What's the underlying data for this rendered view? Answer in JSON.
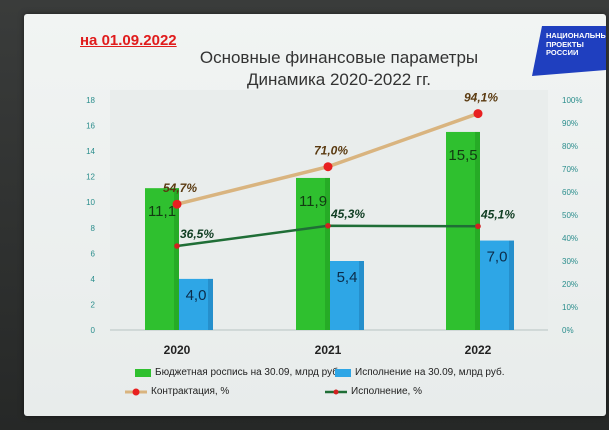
{
  "header": {
    "date_label": "на 01.09.2022",
    "title_line1": "Основные финансовые параметры",
    "title_line2": "Динамика 2020-2022 гг."
  },
  "logo": {
    "line1": "НАЦИОНАЛЬНЫЕ",
    "line2": "ПРОЕКТЫ",
    "line3": "РОССИИ",
    "color": "#1f3fbf"
  },
  "colors": {
    "budget_bar": "#2fc02f",
    "execution_bar": "#2ea6e6",
    "contract_line": "#d9b47f",
    "contract_marker": "#e82020",
    "execution_line": "#1f6e36",
    "execution_marker": "#d22020",
    "axis_text": "#2a8d8c"
  },
  "chart_data": {
    "type": "bar",
    "categories": [
      "2020",
      "2021",
      "2022"
    ],
    "series": [
      {
        "name": "Бюджетная роспись на 30.09, млрд руб.",
        "kind": "bar",
        "axis": "left",
        "values": [
          11.1,
          11.9,
          15.5
        ],
        "labels": [
          "11,1",
          "11,9",
          "15,5"
        ]
      },
      {
        "name": "Исполнение на 30.09, млрд руб.",
        "kind": "bar",
        "axis": "left",
        "values": [
          4.0,
          5.4,
          7.0
        ],
        "labels": [
          "4,0",
          "5,4",
          "7,0"
        ]
      },
      {
        "name": "Контрактация, %",
        "kind": "line",
        "axis": "right",
        "values": [
          54.7,
          71.0,
          94.1
        ],
        "labels": [
          "54,7%",
          "71,0%",
          "94,1%"
        ]
      },
      {
        "name": "Исполнение, %",
        "kind": "line",
        "axis": "right",
        "values": [
          36.5,
          45.3,
          45.1
        ],
        "labels": [
          "36,5%",
          "45,3%",
          "45,1%"
        ]
      }
    ],
    "y_left": {
      "min": 0,
      "max": 18,
      "ticks": [
        "0",
        "2",
        "4",
        "6",
        "8",
        "10",
        "12",
        "14",
        "16",
        "18"
      ]
    },
    "y_right": {
      "min": 0,
      "max": 100,
      "ticks": [
        "0%",
        "10%",
        "20%",
        "30%",
        "40%",
        "50%",
        "60%",
        "70%",
        "80%",
        "90%",
        "100%"
      ]
    },
    "grid": false,
    "legend_position": "bottom"
  }
}
